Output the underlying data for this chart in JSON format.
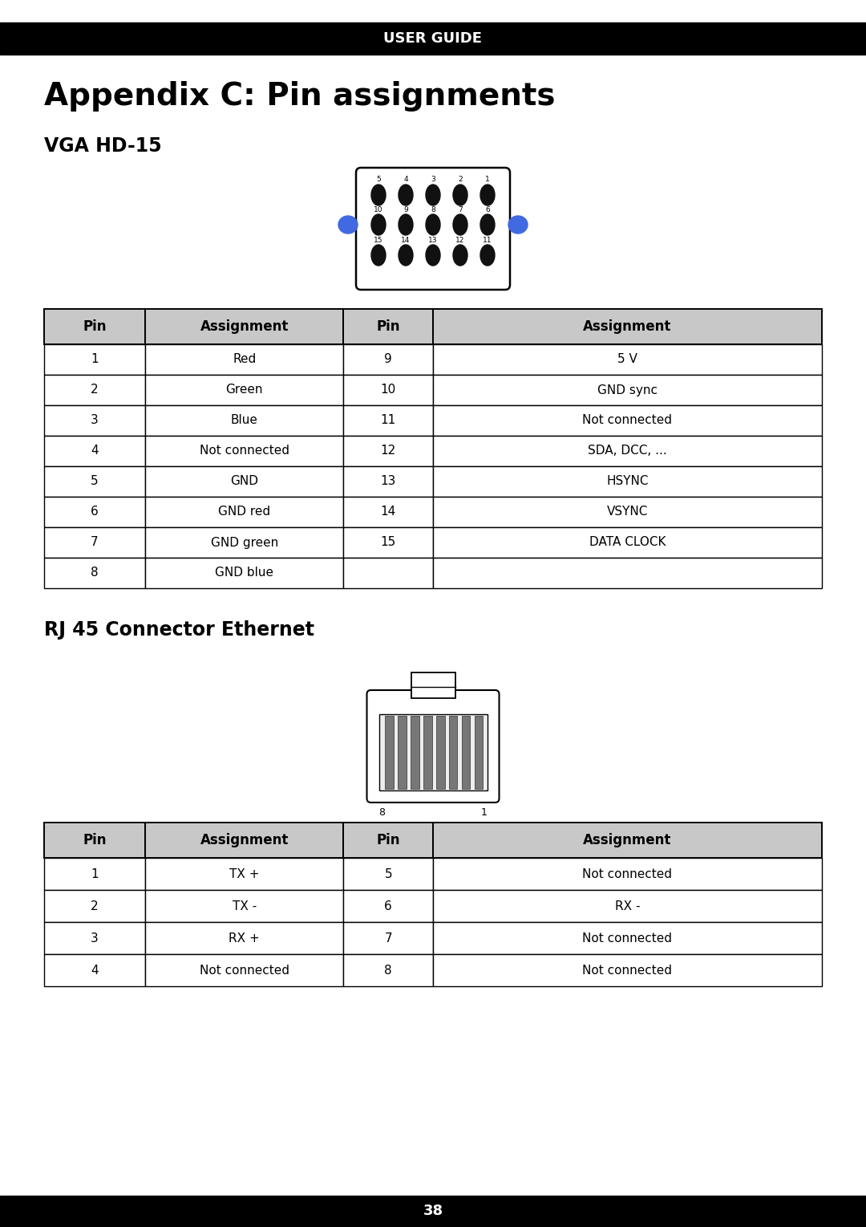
{
  "page_title": "USER GUIDE",
  "appendix_title": "Appendix C: Pin assignments",
  "section1_title": "VGA HD-15",
  "section2_title": "RJ 45 Connector Ethernet",
  "vga_table": {
    "headers": [
      "Pin",
      "Assignment",
      "Pin",
      "Assignment"
    ],
    "rows": [
      [
        "1",
        "Red",
        "9",
        "5 V"
      ],
      [
        "2",
        "Green",
        "10",
        "GND sync"
      ],
      [
        "3",
        "Blue",
        "11",
        "Not connected"
      ],
      [
        "4",
        "Not connected",
        "12",
        "SDA, DCC, ..."
      ],
      [
        "5",
        "GND",
        "13",
        "HSYNC"
      ],
      [
        "6",
        "GND red",
        "14",
        "VSYNC"
      ],
      [
        "7",
        "GND green",
        "15",
        "DATA CLOCK"
      ],
      [
        "8",
        "GND blue",
        "",
        ""
      ]
    ]
  },
  "rj45_table": {
    "headers": [
      "Pin",
      "Assignment",
      "Pin",
      "Assignment"
    ],
    "rows": [
      [
        "1",
        "TX +",
        "5",
        "Not connected"
      ],
      [
        "2",
        "TX -",
        "6",
        "RX -"
      ],
      [
        "3",
        "RX +",
        "7",
        "Not connected"
      ],
      [
        "4",
        "Not connected",
        "8",
        "Not connected"
      ]
    ]
  },
  "footer_text": "38",
  "bg_color": "#ffffff",
  "header_bg": "#000000",
  "header_fg": "#ffffff",
  "table_header_bg": "#c8c8c8",
  "table_border": "#000000",
  "blue_dot_color": "#4169E1",
  "pin_color": "#111111",
  "rj45_pin_color": "#777777"
}
